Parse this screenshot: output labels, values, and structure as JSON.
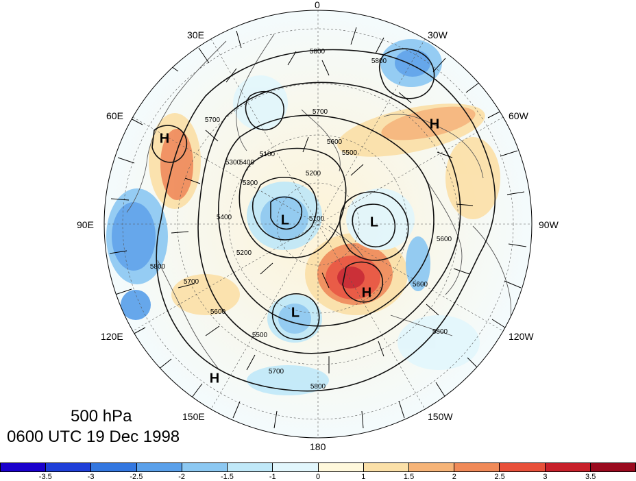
{
  "map": {
    "projection": "north-polar-stereographic",
    "level_label": "500 hPa",
    "time_label": "0600 UTC 19 Dec 1998",
    "longitude_labels": [
      "0",
      "30W",
      "60W",
      "90W",
      "120W",
      "150W",
      "180",
      "150E",
      "120E",
      "90E",
      "60E",
      "30E"
    ],
    "pressure_centers": [
      {
        "type": "H",
        "region": "north-atlantic"
      },
      {
        "type": "H",
        "region": "central-asia"
      },
      {
        "type": "H",
        "region": "north-pacific"
      },
      {
        "type": "H",
        "region": "east-asia"
      },
      {
        "type": "L",
        "region": "siberia"
      },
      {
        "type": "L",
        "region": "north-canada"
      },
      {
        "type": "L",
        "region": "bering-sea"
      }
    ],
    "contour_labels": [
      "5800",
      "5700",
      "5600",
      "5500",
      "5400",
      "5300",
      "5200",
      "5100",
      "5700",
      "5800",
      "5500",
      "5600",
      "5800",
      "5700",
      "5400",
      "5300",
      "5100",
      "5200",
      "5800",
      "5600",
      "5800",
      "5600",
      "5700"
    ]
  },
  "colorbar": {
    "colors": [
      "#1a00cc",
      "#1f3fd8",
      "#3377e0",
      "#5aa0ea",
      "#8cc8f2",
      "#c0e8f8",
      "#e2f6fc",
      "#fff8dc",
      "#fbe0a8",
      "#f6b478",
      "#f08a58",
      "#e8503a",
      "#c8202a",
      "#9a0a1e"
    ],
    "tick_labels": [
      "-3.5",
      "-3",
      "-2.5",
      "-2",
      "-1.5",
      "-1",
      "0",
      "1",
      "1.5",
      "2",
      "2.5",
      "3",
      "3.5"
    ]
  },
  "legend_colors": {
    "land_outline": "#555555",
    "contour": "#111111",
    "wind_barb": "#000000"
  }
}
